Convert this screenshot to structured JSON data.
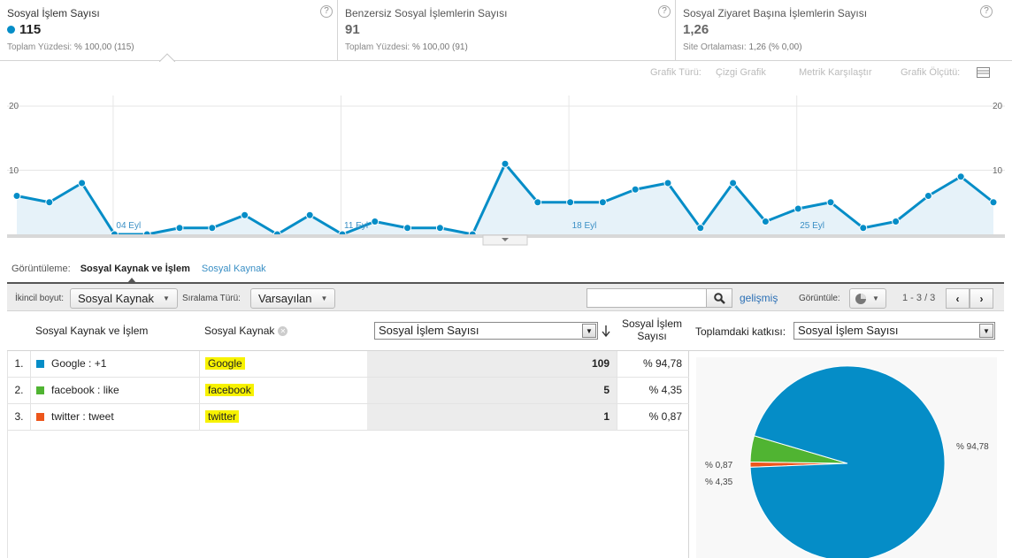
{
  "metrics": [
    {
      "title": "Sosyal İşlem Sayısı",
      "value": "115",
      "sub_label": "Toplam Yüzdesi:",
      "sub_value": "% 100,00 (115)",
      "help": "?"
    },
    {
      "title": "Benzersiz Sosyal İşlemlerin Sayısı",
      "value": "91",
      "sub_label": "Toplam Yüzdesi:",
      "sub_value": "% 100,00 (91)",
      "help": "?"
    },
    {
      "title": "Sosyal Ziyaret Başına İşlemlerin Sayısı",
      "value": "1,26",
      "sub_label": "Site Ortalaması:",
      "sub_value": "1,26 (% 0,00)",
      "help": "?"
    }
  ],
  "chart_options": {
    "chart_type_label": "Grafik Türü:",
    "chart_type_value": "Çizgi Grafik",
    "compare": "Metrik Karşılaştır",
    "scale_label": "Grafik Ölçütü:"
  },
  "colors": {
    "accent": "#058dc7",
    "facebook": "#50b432",
    "twitter": "#ed561b",
    "highlight": "#f7f200"
  },
  "chart_data": {
    "type": "area",
    "ylim": [
      0,
      20
    ],
    "yticks_left": [
      "20",
      "10"
    ],
    "yticks_right": [
      "20",
      "10"
    ],
    "x_labels": [
      "04 Eyl",
      "11 Eyl",
      "18 Eyl",
      "25 Eyl"
    ],
    "x_label_index": [
      3,
      10,
      17,
      24
    ],
    "values": [
      6,
      5,
      8,
      0,
      0,
      1,
      1,
      3,
      0,
      3,
      0,
      2,
      1,
      1,
      0,
      11,
      5,
      5,
      5,
      7,
      8,
      1,
      8,
      2,
      4,
      5,
      1,
      2,
      6,
      9,
      5
    ]
  },
  "view": {
    "label": "Görüntüleme:",
    "current": "Sosyal Kaynak ve İşlem",
    "alternate": "Sosyal Kaynak"
  },
  "toolbar": {
    "secondary_label": "İkincil boyut:",
    "secondary_value": "Sosyal Kaynak",
    "sort_label": "Sıralama Türü:",
    "sort_value": "Varsayılan",
    "search_placeholder": "",
    "advanced": "gelişmiş",
    "display_label": "Görüntüle:",
    "pager": "1 - 3 / 3",
    "prev": "‹",
    "next": "›"
  },
  "table": {
    "col_source_action": "Sosyal Kaynak ve İşlem",
    "col_source": "Sosyal Kaynak",
    "metric_select": "Sosyal İşlem Sayısı",
    "col_metric_line1": "Sosyal İşlem",
    "col_metric_line2": "Sayısı",
    "contribution_label": "Toplamdaki katkısı:",
    "contribution_select": "Sosyal İşlem Sayısı",
    "rows": [
      {
        "idx": "1.",
        "name": "Google : +1",
        "source": "Google",
        "value": "109",
        "pct": "% 94,78"
      },
      {
        "idx": "2.",
        "name": "facebook : like",
        "source": "facebook",
        "value": "5",
        "pct": "% 4,35"
      },
      {
        "idx": "3.",
        "name": "twitter : tweet",
        "source": "twitter",
        "value": "1",
        "pct": "% 0,87"
      }
    ]
  },
  "pie": {
    "slices": [
      94.78,
      4.35,
      0.87
    ],
    "labels": [
      "% 94,78",
      "% 4,35",
      "% 0,87"
    ]
  }
}
